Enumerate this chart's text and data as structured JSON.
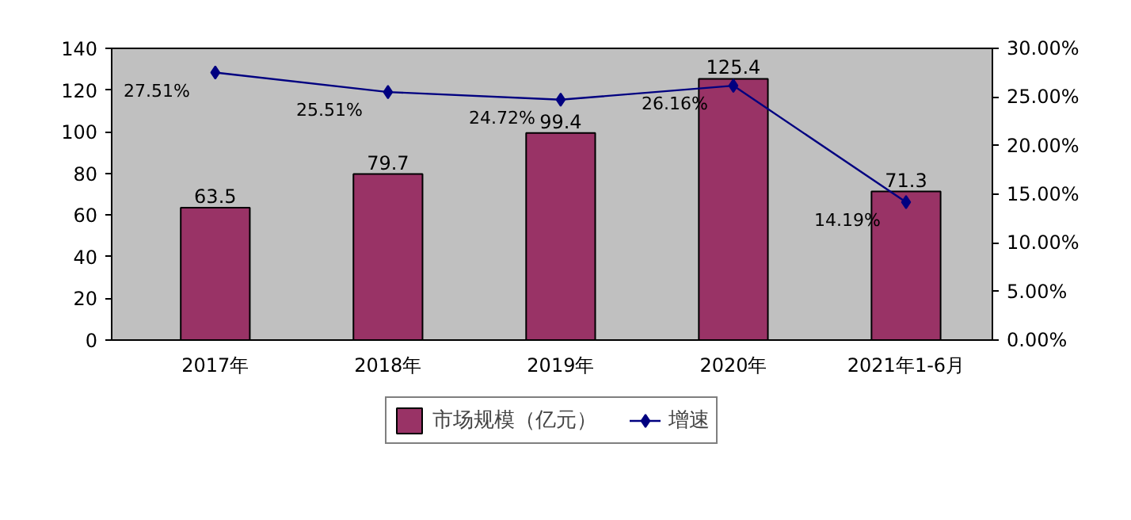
{
  "chart_data": {
    "type": "bar",
    "categories": [
      "2017年",
      "2018年",
      "2019年",
      "2020年",
      "2021年1-6月"
    ],
    "series": [
      {
        "name": "市场规模（亿元）",
        "type": "bar",
        "color": "#993366",
        "values": [
          63.5,
          79.7,
          99.4,
          125.4,
          71.3
        ],
        "value_labels": [
          "63.5",
          "79.7",
          "99.4",
          "125.4",
          "71.3"
        ]
      },
      {
        "name": "增速",
        "type": "line",
        "axis": "y2",
        "color": "#000080",
        "marker": "diamond",
        "values": [
          27.51,
          25.51,
          24.72,
          26.16,
          14.19
        ],
        "value_labels": [
          "27.51%",
          "25.51%",
          "24.72%",
          "26.16%",
          "14.19%"
        ]
      }
    ],
    "ylim": [
      0,
      140
    ],
    "yticks": [
      0,
      20,
      40,
      60,
      80,
      100,
      120,
      140
    ],
    "y2lim": [
      0,
      30
    ],
    "y2ticks": [
      {
        "value": 0,
        "label": "0.00%"
      },
      {
        "value": 5,
        "label": "5.00%"
      },
      {
        "value": 10,
        "label": "10.00%"
      },
      {
        "value": 15,
        "label": "15.00%"
      },
      {
        "value": 20,
        "label": "20.00%"
      },
      {
        "value": 25,
        "label": "25.00%"
      },
      {
        "value": 30,
        "label": "30.00%"
      }
    ],
    "grid": false,
    "legend": "bottom"
  }
}
